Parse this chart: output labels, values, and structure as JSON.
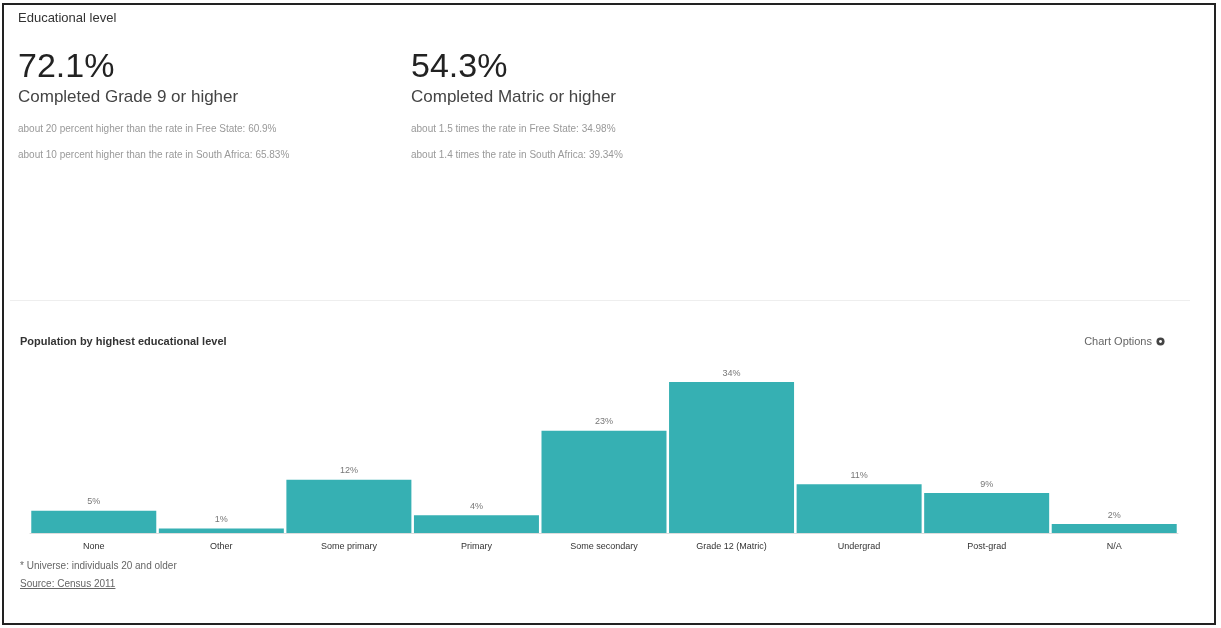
{
  "chart_data": [
    {
      "type": "other",
      "title": "Educational level",
      "annotations": [
        "72.1%",
        "Completed Grade 9 or higher",
        "about 20 percent higher than the rate in Free State: 60.9%",
        "about 10 percent higher than the rate in South Africa: 65.83%",
        "54.3%",
        "Completed Matric or higher",
        "about 1.5 times the rate in Free State: 34.98%",
        "about 1.4 times the rate in South Africa: 39.34%"
      ]
    },
    {
      "type": "bar",
      "title": "Population by highest educational level",
      "categories": [
        "None",
        "Other",
        "Some primary",
        "Primary",
        "Some secondary",
        "Grade 12 (Matric)",
        "Undergrad",
        "Post-grad",
        "N/A"
      ],
      "values": [
        5,
        1,
        12,
        4,
        23,
        34,
        11,
        9,
        2
      ],
      "value_labels": [
        "5%",
        "1%",
        "12%",
        "4%",
        "23%",
        "34%",
        "11%",
        "9%",
        "2%"
      ],
      "color": "#36b0b3",
      "annotations": [
        "Chart Options",
        "* Universe: individuals 20 and older",
        "Source: Census 2011"
      ]
    }
  ]
}
